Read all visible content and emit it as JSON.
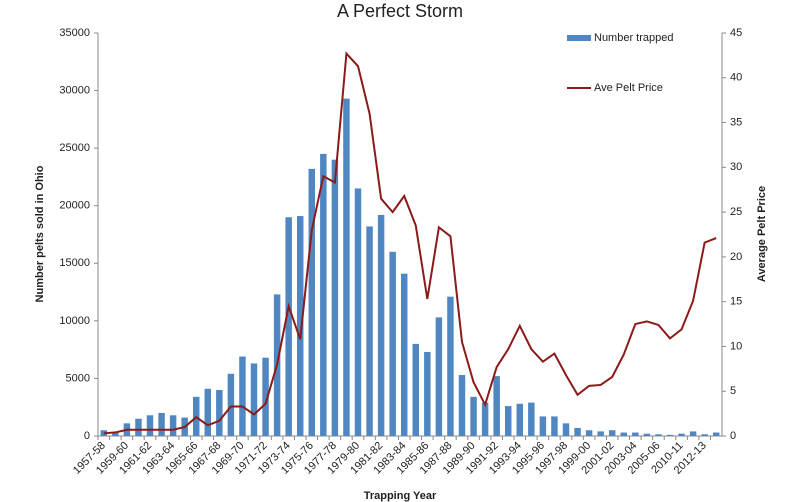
{
  "chart_data": {
    "type": "bar_line",
    "title": "A Perfect Storm",
    "x_label": "Trapping Year",
    "y_label": "Number pelts sold in Ohio",
    "y2_label": "Average Pelt Price",
    "categories": [
      "1957-58",
      null,
      "1959-60",
      null,
      "1961-62",
      null,
      "1963-64",
      null,
      "1965-66",
      null,
      "1967-68",
      null,
      "1969-70",
      null,
      "1971-72",
      null,
      "1973-74",
      null,
      "1975-76",
      null,
      "1977-78",
      null,
      "1979-80",
      null,
      "1981-82",
      null,
      "1983-84",
      null,
      "1985-86",
      null,
      "1987-88",
      null,
      "1989-90",
      null,
      "1991-92",
      null,
      "1993-94",
      null,
      "1995-96",
      null,
      "1997-98",
      null,
      "1999-00",
      null,
      "2001-02",
      null,
      "2003-04",
      null,
      "2005-06",
      null,
      "2010-11",
      null,
      "2012-13",
      null
    ],
    "series": [
      {
        "name": "Number trapped",
        "type": "bar",
        "color": "#4f87c2",
        "values": [
          500,
          300,
          1100,
          1500,
          1800,
          2000,
          1800,
          1600,
          3400,
          4100,
          4000,
          5400,
          6900,
          6300,
          6800,
          12300,
          19000,
          19100,
          23200,
          24500,
          24000,
          29300,
          21500,
          18200,
          19200,
          16000,
          14100,
          8000,
          7300,
          10300,
          12100,
          5300,
          3400,
          2900,
          5200,
          2600,
          2800,
          2900,
          1700,
          1700,
          1100,
          700,
          500,
          400,
          500,
          300,
          300,
          200,
          150,
          100,
          200,
          400,
          150,
          300
        ]
      },
      {
        "name": "Ave Pelt Price",
        "type": "line",
        "axis": "y2",
        "color": "#8b1a1a",
        "values": [
          0.3,
          0.4,
          0.7,
          0.7,
          0.7,
          0.7,
          0.7,
          1.0,
          2.1,
          1.2,
          1.7,
          3.3,
          3.3,
          2.4,
          3.6,
          8.0,
          14.5,
          10.8,
          23,
          29,
          28.3,
          42.7,
          41.3,
          36,
          26.5,
          25,
          26.8,
          23.5,
          15.3,
          23.3,
          22.3,
          10.5,
          6,
          3.5,
          7.7,
          9.7,
          12.3,
          9.7,
          8.3,
          9.2,
          6.8,
          4.6,
          5.6,
          5.7,
          6.6,
          9.1,
          12.5,
          12.8,
          12.4,
          10.9,
          11.9,
          15.1,
          21.6,
          22.1
        ]
      }
    ],
    "ylim": [
      0,
      35000
    ],
    "yticks": [
      0,
      5000,
      10000,
      15000,
      20000,
      25000,
      30000,
      35000
    ],
    "y2lim": [
      0,
      45
    ],
    "y2ticks": [
      0,
      5,
      10,
      15,
      20,
      25,
      30,
      35,
      40,
      45
    ]
  }
}
